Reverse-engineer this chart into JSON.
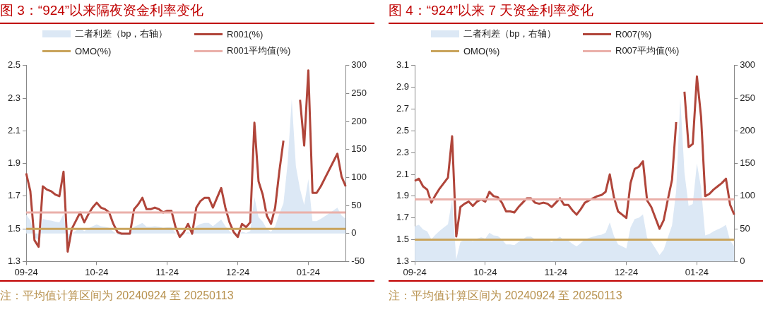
{
  "chart_data": [
    {
      "type": "line",
      "title": "图 3：“924”以来隔夜资金利率变化",
      "categories": [
        "09-24",
        null,
        null,
        null,
        null,
        null,
        null,
        null,
        null,
        null,
        null,
        null,
        null,
        null,
        null,
        null,
        null,
        "10-24",
        null,
        null,
        null,
        null,
        null,
        null,
        null,
        null,
        null,
        null,
        null,
        null,
        null,
        null,
        null,
        null,
        "11-24",
        null,
        null,
        null,
        null,
        null,
        null,
        null,
        null,
        null,
        null,
        null,
        null,
        null,
        null,
        null,
        null,
        "12-24",
        null,
        null,
        null,
        null,
        null,
        null,
        null,
        null,
        null,
        null,
        null,
        null,
        null,
        null,
        null,
        null,
        "01-24",
        null,
        null,
        null,
        null,
        null,
        null,
        null,
        null,
        null
      ],
      "series": [
        {
          "name": "二者利差（bp，右轴）",
          "type": "area",
          "axis": "y2",
          "color": "#dce8f5",
          "values": [
            34,
            23,
            -7,
            -11,
            26,
            24,
            23,
            21,
            20,
            35,
            -14,
            0,
            5,
            10,
            4,
            9,
            13,
            16,
            13,
            12,
            10,
            3,
            -2,
            -3,
            -3,
            -3,
            12,
            15,
            19,
            12,
            12,
            13,
            12,
            10,
            11,
            11,
            1,
            -5,
            -2,
            3,
            -3,
            13,
            17,
            19,
            19,
            13,
            19,
            25,
            13,
            4,
            -2,
            -5,
            3,
            1,
            4,
            65,
            29,
            21,
            8,
            3,
            13,
            35,
            54,
            125,
            240,
            120,
            79,
            51,
            97,
            22,
            22,
            26,
            31,
            36,
            41,
            46,
            32,
            26
          ]
        },
        {
          "name": "R001(%)",
          "color": "#b0453a",
          "values": [
            1.84,
            1.73,
            1.43,
            1.39,
            1.76,
            1.74,
            1.73,
            1.71,
            1.7,
            1.85,
            1.36,
            1.5,
            1.55,
            1.6,
            1.54,
            1.59,
            1.63,
            1.66,
            1.63,
            1.62,
            1.6,
            1.53,
            1.48,
            1.47,
            1.47,
            1.47,
            1.62,
            1.65,
            1.69,
            1.62,
            1.62,
            1.63,
            1.62,
            1.6,
            1.61,
            1.61,
            1.51,
            1.45,
            1.48,
            1.53,
            1.47,
            1.63,
            1.67,
            1.69,
            1.69,
            1.63,
            1.69,
            1.75,
            1.63,
            1.54,
            1.48,
            1.45,
            1.53,
            1.51,
            1.54,
            2.15,
            1.79,
            1.71,
            1.58,
            1.53,
            1.63,
            1.85,
            2.04,
            null,
            null,
            null,
            2.29,
            2.01,
            2.47,
            1.72,
            1.72,
            1.76,
            1.81,
            1.86,
            1.91,
            1.96,
            1.82,
            1.76
          ]
        },
        {
          "name": "OMO(%)",
          "color": "#c9a45c",
          "values": [
            1.5,
            1.5,
            1.5,
            1.5,
            1.5,
            1.5,
            1.5,
            1.5,
            1.5,
            1.5,
            1.5,
            1.5,
            1.5,
            1.5,
            1.5,
            1.5,
            1.5,
            1.5,
            1.5,
            1.5,
            1.5,
            1.5,
            1.5,
            1.5,
            1.5,
            1.5,
            1.5,
            1.5,
            1.5,
            1.5,
            1.5,
            1.5,
            1.5,
            1.5,
            1.5,
            1.5,
            1.5,
            1.5,
            1.5,
            1.5,
            1.5,
            1.5,
            1.5,
            1.5,
            1.5,
            1.5,
            1.5,
            1.5,
            1.5,
            1.5,
            1.5,
            1.5,
            1.5,
            1.5,
            1.5,
            1.5,
            1.5,
            1.5,
            1.5,
            1.5,
            1.5,
            1.5,
            1.5,
            1.5,
            1.5,
            1.5,
            1.5,
            1.5,
            1.5,
            1.5,
            1.5,
            1.5,
            1.5,
            1.5,
            1.5,
            1.5,
            1.5,
            1.5
          ]
        },
        {
          "name": "R001平均值(%)",
          "color": "#eab0aa",
          "values": [
            1.6,
            1.6,
            1.6,
            1.6,
            1.6,
            1.6,
            1.6,
            1.6,
            1.6,
            1.6,
            1.6,
            1.6,
            1.6,
            1.6,
            1.6,
            1.6,
            1.6,
            1.6,
            1.6,
            1.6,
            1.6,
            1.6,
            1.6,
            1.6,
            1.6,
            1.6,
            1.6,
            1.6,
            1.6,
            1.6,
            1.6,
            1.6,
            1.6,
            1.6,
            1.6,
            1.6,
            1.6,
            1.6,
            1.6,
            1.6,
            1.6,
            1.6,
            1.6,
            1.6,
            1.6,
            1.6,
            1.6,
            1.6,
            1.6,
            1.6,
            1.6,
            1.6,
            1.6,
            1.6,
            1.6,
            1.6,
            1.6,
            1.6,
            1.6,
            1.6,
            1.6,
            1.6,
            1.6,
            1.6,
            1.6,
            1.6,
            1.6,
            1.6,
            1.6,
            1.6,
            1.6,
            1.6,
            1.6,
            1.6,
            1.6,
            1.6,
            1.6,
            1.6
          ]
        }
      ],
      "ylim": [
        1.3,
        2.5
      ],
      "yticks": [
        1.3,
        1.5,
        1.7,
        1.9,
        2.1,
        2.3,
        2.5
      ],
      "y2lim": [
        -50,
        300
      ],
      "y2ticks": [
        -50,
        0,
        50,
        100,
        150,
        200,
        250,
        300
      ],
      "legend": "top",
      "annotations": [
        "注：平均值计算区间为 20240924 至 20250113"
      ]
    },
    {
      "type": "line",
      "title": "图 4：“924”以来 7 天资金利率变化",
      "categories": [
        "09-24",
        null,
        null,
        null,
        null,
        null,
        null,
        null,
        null,
        null,
        null,
        null,
        null,
        null,
        null,
        null,
        null,
        "10-24",
        null,
        null,
        null,
        null,
        null,
        null,
        null,
        null,
        null,
        null,
        null,
        null,
        null,
        null,
        null,
        null,
        "11-24",
        null,
        null,
        null,
        null,
        null,
        null,
        null,
        null,
        null,
        null,
        null,
        null,
        null,
        null,
        null,
        null,
        "12-24",
        null,
        null,
        null,
        null,
        null,
        null,
        null,
        null,
        null,
        null,
        null,
        null,
        null,
        null,
        null,
        null,
        "01-24",
        null,
        null,
        null,
        null,
        null,
        null,
        null,
        null,
        null
      ],
      "series": [
        {
          "name": "二者利差（bp，右轴）",
          "type": "area",
          "axis": "y2",
          "color": "#dce8f5",
          "values": [
            54,
            56,
            49,
            46,
            34,
            41,
            47,
            52,
            57,
            95,
            3,
            30,
            33,
            35,
            31,
            35,
            37,
            35,
            44,
            40,
            39,
            34,
            26,
            26,
            25,
            30,
            34,
            38,
            38,
            34,
            33,
            34,
            33,
            30,
            34,
            38,
            32,
            32,
            27,
            23,
            28,
            34,
            36,
            38,
            40,
            41,
            44,
            60,
            39,
            26,
            23,
            20,
            52,
            65,
            67,
            72,
            36,
            30,
            20,
            10,
            18,
            37,
            55,
            108,
            250,
            136,
            85,
            88,
            150,
            113,
            40,
            42,
            46,
            49,
            52,
            56,
            32,
            23
          ]
        },
        {
          "name": "R007(%)",
          "color": "#b0453a",
          "values": [
            2.04,
            2.06,
            1.99,
            1.96,
            1.84,
            1.91,
            1.97,
            2.02,
            2.07,
            2.45,
            1.53,
            1.8,
            1.83,
            1.85,
            1.81,
            1.85,
            1.87,
            1.85,
            1.94,
            1.9,
            1.89,
            1.84,
            1.76,
            1.76,
            1.75,
            1.8,
            1.84,
            1.88,
            1.88,
            1.84,
            1.83,
            1.84,
            1.83,
            1.8,
            1.84,
            1.88,
            1.82,
            1.82,
            1.77,
            1.73,
            1.78,
            1.84,
            1.86,
            1.88,
            1.9,
            1.91,
            1.94,
            2.1,
            1.89,
            1.76,
            1.73,
            1.7,
            2.02,
            2.15,
            2.17,
            2.22,
            1.86,
            1.8,
            1.7,
            1.6,
            1.68,
            1.87,
            2.05,
            2.58,
            null,
            2.86,
            2.35,
            2.38,
            3.0,
            2.63,
            1.9,
            1.92,
            1.96,
            1.99,
            2.02,
            2.06,
            1.82,
            1.73
          ]
        },
        {
          "name": "OMO(%)",
          "color": "#c9a45c",
          "values": [
            1.5,
            1.5,
            1.5,
            1.5,
            1.5,
            1.5,
            1.5,
            1.5,
            1.5,
            1.5,
            1.5,
            1.5,
            1.5,
            1.5,
            1.5,
            1.5,
            1.5,
            1.5,
            1.5,
            1.5,
            1.5,
            1.5,
            1.5,
            1.5,
            1.5,
            1.5,
            1.5,
            1.5,
            1.5,
            1.5,
            1.5,
            1.5,
            1.5,
            1.5,
            1.5,
            1.5,
            1.5,
            1.5,
            1.5,
            1.5,
            1.5,
            1.5,
            1.5,
            1.5,
            1.5,
            1.5,
            1.5,
            1.5,
            1.5,
            1.5,
            1.5,
            1.5,
            1.5,
            1.5,
            1.5,
            1.5,
            1.5,
            1.5,
            1.5,
            1.5,
            1.5,
            1.5,
            1.5,
            1.5,
            1.5,
            1.5,
            1.5,
            1.5,
            1.5,
            1.5,
            1.5,
            1.5,
            1.5,
            1.5,
            1.5,
            1.5,
            1.5,
            1.5
          ]
        },
        {
          "name": "R007平均值(%)",
          "color": "#eab0aa",
          "values": [
            1.87,
            1.87,
            1.87,
            1.87,
            1.87,
            1.87,
            1.87,
            1.87,
            1.87,
            1.87,
            1.87,
            1.87,
            1.87,
            1.87,
            1.87,
            1.87,
            1.87,
            1.87,
            1.87,
            1.87,
            1.87,
            1.87,
            1.87,
            1.87,
            1.87,
            1.87,
            1.87,
            1.87,
            1.87,
            1.87,
            1.87,
            1.87,
            1.87,
            1.87,
            1.87,
            1.87,
            1.87,
            1.87,
            1.87,
            1.87,
            1.87,
            1.87,
            1.87,
            1.87,
            1.87,
            1.87,
            1.87,
            1.87,
            1.87,
            1.87,
            1.87,
            1.87,
            1.87,
            1.87,
            1.87,
            1.87,
            1.87,
            1.87,
            1.87,
            1.87,
            1.87,
            1.87,
            1.87,
            1.87,
            1.87,
            1.87,
            1.87,
            1.87,
            1.87,
            1.87,
            1.87,
            1.87,
            1.87,
            1.87,
            1.87,
            1.87,
            1.87,
            1.87
          ]
        }
      ],
      "ylim": [
        1.3,
        3.1
      ],
      "yticks": [
        1.3,
        1.5,
        1.7,
        1.9,
        2.1,
        2.3,
        2.5,
        2.7,
        2.9,
        3.1
      ],
      "y2lim": [
        0,
        300
      ],
      "y2ticks": [
        0,
        50,
        100,
        150,
        200,
        250,
        300
      ],
      "legend": "top",
      "annotations": [
        "注：平均值计算区间为 20240924 至 20250113"
      ]
    }
  ]
}
